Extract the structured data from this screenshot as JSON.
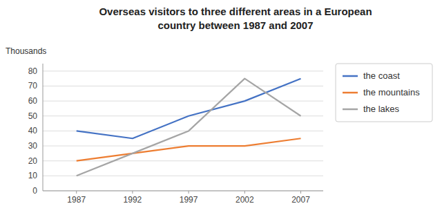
{
  "chart_data": {
    "type": "line",
    "title": [
      "Overseas visitors to three different areas in a European",
      "country between 1987 and 2007"
    ],
    "y_label": "Thousands",
    "x": [
      1987,
      1992,
      1997,
      2002,
      2007
    ],
    "series": [
      {
        "name": "the coast",
        "color": "#4472C4",
        "values": [
          40,
          35,
          50,
          60,
          75
        ]
      },
      {
        "name": "the mountains",
        "color": "#ED7D31",
        "values": [
          20,
          25,
          30,
          30,
          35
        ]
      },
      {
        "name": "the lakes",
        "color": "#A5A5A5",
        "values": [
          10,
          25,
          40,
          75,
          50
        ]
      }
    ],
    "xlim": [
      1984,
      2009
    ],
    "xticks": [
      1987,
      1992,
      1997,
      2002,
      2007
    ],
    "ylim": [
      0,
      85
    ],
    "yticks": [
      0,
      10,
      20,
      30,
      40,
      50,
      60,
      70,
      80
    ],
    "grid": true,
    "legend": "right"
  }
}
